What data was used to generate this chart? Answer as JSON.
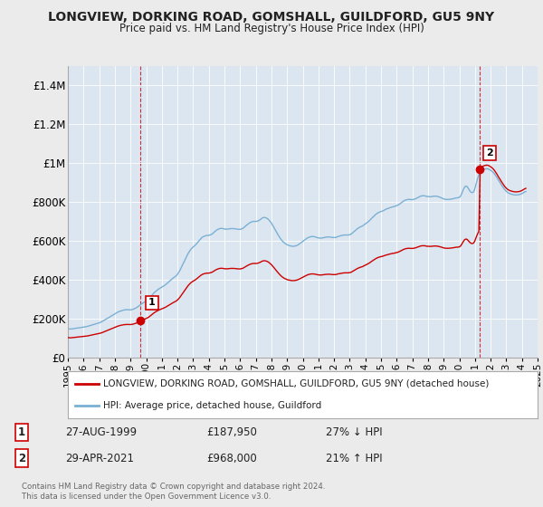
{
  "title": "LONGVIEW, DORKING ROAD, GOMSHALL, GUILDFORD, GU5 9NY",
  "subtitle": "Price paid vs. HM Land Registry's House Price Index (HPI)",
  "bg_color": "#ebebeb",
  "plot_bg_color": "#dce6f0",
  "grid_color": "#ffffff",
  "red_color": "#cc0000",
  "blue_color": "#7ab0d4",
  "ylim": [
    0,
    1500000
  ],
  "yticks": [
    0,
    200000,
    400000,
    600000,
    800000,
    1000000,
    1200000,
    1400000
  ],
  "ytick_labels": [
    "£0",
    "£200K",
    "£400K",
    "£600K",
    "£800K",
    "£1M",
    "£1.2M",
    "£1.4M"
  ],
  "sale1_x": 1999.65,
  "sale1_y": 187950,
  "sale1_label": "1",
  "sale2_x": 2021.32,
  "sale2_y": 968000,
  "sale2_label": "2",
  "legend_line1": "LONGVIEW, DORKING ROAD, GOMSHALL, GUILDFORD, GU5 9NY (detached house)",
  "legend_line2": "HPI: Average price, detached house, Guildford",
  "note1_box": "1",
  "note1_date": "27-AUG-1999",
  "note1_price": "£187,950",
  "note1_hpi": "27% ↓ HPI",
  "note2_box": "2",
  "note2_date": "29-APR-2021",
  "note2_price": "£968,000",
  "note2_hpi": "21% ↑ HPI",
  "copyright": "Contains HM Land Registry data © Crown copyright and database right 2024.\nThis data is licensed under the Open Government Licence v3.0.",
  "hpi_index": [
    100.0,
    99.3,
    98.6,
    99.3,
    100.0,
    100.7,
    101.4,
    102.0,
    102.7,
    103.4,
    104.1,
    104.7,
    105.4,
    106.1,
    106.8,
    108.1,
    109.5,
    110.8,
    112.2,
    113.5,
    114.9,
    116.2,
    117.6,
    118.9,
    120.3,
    122.3,
    124.3,
    127.0,
    129.7,
    132.4,
    135.1,
    137.8,
    140.5,
    143.2,
    145.9,
    148.6,
    151.4,
    154.1,
    156.8,
    158.8,
    160.8,
    162.2,
    163.5,
    164.9,
    165.5,
    166.2,
    166.2,
    165.5,
    165.5,
    166.2,
    167.6,
    169.6,
    171.6,
    174.3,
    177.7,
    181.1,
    184.5,
    187.8,
    190.5,
    193.2,
    195.9,
    199.3,
    202.7,
    208.1,
    213.5,
    218.9,
    224.3,
    228.4,
    232.4,
    235.8,
    239.2,
    241.9,
    244.6,
    247.3,
    250.0,
    253.4,
    257.4,
    261.5,
    265.5,
    269.6,
    273.6,
    277.0,
    280.4,
    283.8,
    289.2,
    295.9,
    304.1,
    313.5,
    322.9,
    332.4,
    341.8,
    351.4,
    360.1,
    367.6,
    374.3,
    379.7,
    383.8,
    387.8,
    391.9,
    397.3,
    402.7,
    408.1,
    413.5,
    417.6,
    420.3,
    422.3,
    423.6,
    424.3,
    424.3,
    425.7,
    427.7,
    430.7,
    435.1,
    439.2,
    442.6,
    445.3,
    447.3,
    448.6,
    448.6,
    447.9,
    446.6,
    445.9,
    445.9,
    446.6,
    447.3,
    448.0,
    448.0,
    448.0,
    447.3,
    446.6,
    445.9,
    445.3,
    445.3,
    446.6,
    448.6,
    451.9,
    456.1,
    460.1,
    463.5,
    466.9,
    469.6,
    471.6,
    472.9,
    472.9,
    472.9,
    473.6,
    475.0,
    477.7,
    481.1,
    484.5,
    486.5,
    486.5,
    485.1,
    482.4,
    478.4,
    472.9,
    466.9,
    459.5,
    451.4,
    443.2,
    435.1,
    427.0,
    419.6,
    412.8,
    406.8,
    401.9,
    397.9,
    394.6,
    391.9,
    389.9,
    388.5,
    387.2,
    386.5,
    386.5,
    387.2,
    388.5,
    390.5,
    393.2,
    396.6,
    400.0,
    403.4,
    406.8,
    410.1,
    413.5,
    416.2,
    418.2,
    419.6,
    420.3,
    420.3,
    419.6,
    418.2,
    416.9,
    415.5,
    414.9,
    414.9,
    415.5,
    416.2,
    417.6,
    418.2,
    418.9,
    418.9,
    418.2,
    417.6,
    416.9,
    416.9,
    416.9,
    418.2,
    420.3,
    421.6,
    423.0,
    424.3,
    425.0,
    425.7,
    425.7,
    425.7,
    425.7,
    427.0,
    428.4,
    432.4,
    436.5,
    440.5,
    444.6,
    447.9,
    450.7,
    453.4,
    455.4,
    457.4,
    461.5,
    464.2,
    467.6,
    471.0,
    474.9,
    479.7,
    484.5,
    488.5,
    493.2,
    497.3,
    500.7,
    503.4,
    505.4,
    507.4,
    508.8,
    510.8,
    513.5,
    515.5,
    517.6,
    519.0,
    520.9,
    522.3,
    523.6,
    524.3,
    526.4,
    527.7,
    529.7,
    532.4,
    535.8,
    539.2,
    542.6,
    545.3,
    547.3,
    548.6,
    549.3,
    549.3,
    548.6,
    548.6,
    549.3,
    550.7,
    552.7,
    555.4,
    557.4,
    560.1,
    561.5,
    562.2,
    562.2,
    561.5,
    559.5,
    559.5,
    558.8,
    558.8,
    559.5,
    560.1,
    560.8,
    560.8,
    560.1,
    558.8,
    557.4,
    555.4,
    553.4,
    551.4,
    550.0,
    549.3,
    549.3,
    549.3,
    549.9,
    550.7,
    551.4,
    552.7,
    554.1,
    554.7,
    555.4,
    556.1,
    560.8,
    570.9,
    582.4,
    591.9,
    595.9,
    594.0,
    587.2,
    579.7,
    574.3,
    572.9,
    575.7,
    587.8,
    605.4,
    621.6,
    634.9,
    643.2,
    648.6,
    651.9,
    654.1,
    655.4,
    656.1,
    655.4,
    653.4,
    650.7,
    647.3,
    643.2,
    637.8,
    631.1,
    624.3,
    616.2,
    609.5,
    601.9,
    595.1,
    588.5,
    582.4,
    577.7,
    573.6,
    570.9,
    568.9,
    567.6,
    566.2,
    565.5,
    564.9,
    564.9,
    565.5,
    566.2,
    567.6,
    569.6,
    572.3,
    575.0,
    576.9
  ],
  "hpi_years": [
    1995.0,
    1995.083,
    1995.167,
    1995.25,
    1995.333,
    1995.417,
    1995.5,
    1995.583,
    1995.667,
    1995.75,
    1995.833,
    1995.917,
    1996.0,
    1996.083,
    1996.167,
    1996.25,
    1996.333,
    1996.417,
    1996.5,
    1996.583,
    1996.667,
    1996.75,
    1996.833,
    1996.917,
    1997.0,
    1997.083,
    1997.167,
    1997.25,
    1997.333,
    1997.417,
    1997.5,
    1997.583,
    1997.667,
    1997.75,
    1997.833,
    1997.917,
    1998.0,
    1998.083,
    1998.167,
    1998.25,
    1998.333,
    1998.417,
    1998.5,
    1998.583,
    1998.667,
    1998.75,
    1998.833,
    1998.917,
    1999.0,
    1999.083,
    1999.167,
    1999.25,
    1999.333,
    1999.417,
    1999.5,
    1999.583,
    1999.667,
    1999.75,
    1999.833,
    1999.917,
    2000.0,
    2000.083,
    2000.167,
    2000.25,
    2000.333,
    2000.417,
    2000.5,
    2000.583,
    2000.667,
    2000.75,
    2000.833,
    2000.917,
    2001.0,
    2001.083,
    2001.167,
    2001.25,
    2001.333,
    2001.417,
    2001.5,
    2001.583,
    2001.667,
    2001.75,
    2001.833,
    2001.917,
    2002.0,
    2002.083,
    2002.167,
    2002.25,
    2002.333,
    2002.417,
    2002.5,
    2002.583,
    2002.667,
    2002.75,
    2002.833,
    2002.917,
    2003.0,
    2003.083,
    2003.167,
    2003.25,
    2003.333,
    2003.417,
    2003.5,
    2003.583,
    2003.667,
    2003.75,
    2003.833,
    2003.917,
    2004.0,
    2004.083,
    2004.167,
    2004.25,
    2004.333,
    2004.417,
    2004.5,
    2004.583,
    2004.667,
    2004.75,
    2004.833,
    2004.917,
    2005.0,
    2005.083,
    2005.167,
    2005.25,
    2005.333,
    2005.417,
    2005.5,
    2005.583,
    2005.667,
    2005.75,
    2005.833,
    2005.917,
    2006.0,
    2006.083,
    2006.167,
    2006.25,
    2006.333,
    2006.417,
    2006.5,
    2006.583,
    2006.667,
    2006.75,
    2006.833,
    2006.917,
    2007.0,
    2007.083,
    2007.167,
    2007.25,
    2007.333,
    2007.417,
    2007.5,
    2007.583,
    2007.667,
    2007.75,
    2007.833,
    2007.917,
    2008.0,
    2008.083,
    2008.167,
    2008.25,
    2008.333,
    2008.417,
    2008.5,
    2008.583,
    2008.667,
    2008.75,
    2008.833,
    2008.917,
    2009.0,
    2009.083,
    2009.167,
    2009.25,
    2009.333,
    2009.417,
    2009.5,
    2009.583,
    2009.667,
    2009.75,
    2009.833,
    2009.917,
    2010.0,
    2010.083,
    2010.167,
    2010.25,
    2010.333,
    2010.417,
    2010.5,
    2010.583,
    2010.667,
    2010.75,
    2010.833,
    2010.917,
    2011.0,
    2011.083,
    2011.167,
    2011.25,
    2011.333,
    2011.417,
    2011.5,
    2011.583,
    2011.667,
    2011.75,
    2011.833,
    2011.917,
    2012.0,
    2012.083,
    2012.167,
    2012.25,
    2012.333,
    2012.417,
    2012.5,
    2012.583,
    2012.667,
    2012.75,
    2012.833,
    2012.917,
    2013.0,
    2013.083,
    2013.167,
    2013.25,
    2013.333,
    2013.417,
    2013.5,
    2013.583,
    2013.667,
    2013.75,
    2013.833,
    2013.917,
    2014.0,
    2014.083,
    2014.167,
    2014.25,
    2014.333,
    2014.417,
    2014.5,
    2014.583,
    2014.667,
    2014.75,
    2014.833,
    2014.917,
    2015.0,
    2015.083,
    2015.167,
    2015.25,
    2015.333,
    2015.417,
    2015.5,
    2015.583,
    2015.667,
    2015.75,
    2015.833,
    2015.917,
    2016.0,
    2016.083,
    2016.167,
    2016.25,
    2016.333,
    2016.417,
    2016.5,
    2016.583,
    2016.667,
    2016.75,
    2016.833,
    2016.917,
    2017.0,
    2017.083,
    2017.167,
    2017.25,
    2017.333,
    2017.417,
    2017.5,
    2017.583,
    2017.667,
    2017.75,
    2017.833,
    2017.917,
    2018.0,
    2018.083,
    2018.167,
    2018.25,
    2018.333,
    2018.417,
    2018.5,
    2018.583,
    2018.667,
    2018.75,
    2018.833,
    2018.917,
    2019.0,
    2019.083,
    2019.167,
    2019.25,
    2019.333,
    2019.417,
    2019.5,
    2019.583,
    2019.667,
    2019.75,
    2019.833,
    2019.917,
    2020.0,
    2020.083,
    2020.167,
    2020.25,
    2020.333,
    2020.417,
    2020.5,
    2020.583,
    2020.667,
    2020.75,
    2020.833,
    2020.917,
    2021.0,
    2021.083,
    2021.167,
    2021.25,
    2021.333,
    2021.417,
    2021.5,
    2021.583,
    2021.667,
    2021.75,
    2021.833,
    2021.917,
    2022.0,
    2022.083,
    2022.167,
    2022.25,
    2022.333,
    2022.417,
    2022.5,
    2022.583,
    2022.667,
    2022.75,
    2022.833,
    2022.917,
    2023.0,
    2023.083,
    2023.167,
    2023.25,
    2023.333,
    2023.417,
    2023.5,
    2023.583,
    2023.667,
    2023.75,
    2023.833,
    2023.917,
    2024.0,
    2024.083,
    2024.167,
    2024.25
  ],
  "sale1_hpi_index": 177.7,
  "sale2_hpi_index": 654.1,
  "xticks": [
    1995,
    1996,
    1997,
    1998,
    1999,
    2000,
    2001,
    2002,
    2003,
    2004,
    2005,
    2006,
    2007,
    2008,
    2009,
    2010,
    2011,
    2012,
    2013,
    2014,
    2015,
    2016,
    2017,
    2018,
    2019,
    2020,
    2021,
    2022,
    2023,
    2024,
    2025
  ]
}
